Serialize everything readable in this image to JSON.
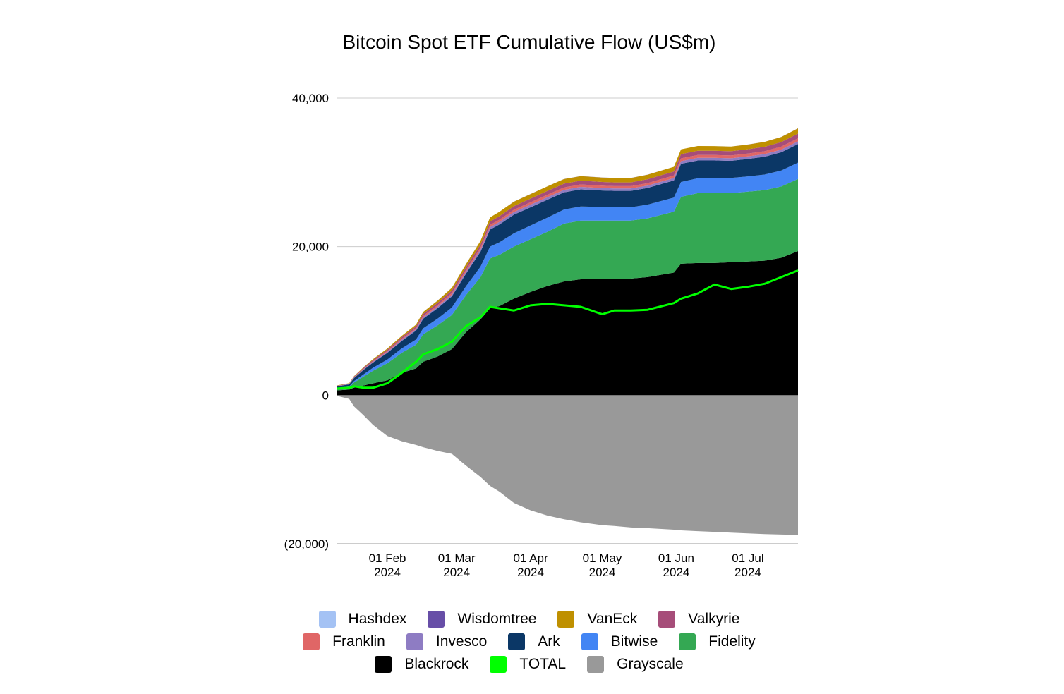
{
  "chart_data": {
    "type": "area",
    "title": "Bitcoin Spot ETF Cumulative Flow (US$m)",
    "xlabel": "",
    "ylabel": "",
    "ylim": [
      -20000,
      40000
    ],
    "yticks": [
      40000,
      20000,
      0,
      -20000
    ],
    "ytick_labels": [
      "40,000",
      "20,000",
      "0",
      "(20,000)"
    ],
    "xlim": [
      "2024-01-11",
      "2024-07-22"
    ],
    "xticks": [
      {
        "date": "2024-02-01",
        "line1": "01 Feb",
        "line2": "2024"
      },
      {
        "date": "2024-03-01",
        "line1": "01 Mar",
        "line2": "2024"
      },
      {
        "date": "2024-04-01",
        "line1": "01 Apr",
        "line2": "2024"
      },
      {
        "date": "2024-05-01",
        "line1": "01 May",
        "line2": "2024"
      },
      {
        "date": "2024-06-01",
        "line1": "01 Jun",
        "line2": "2024"
      },
      {
        "date": "2024-07-01",
        "line1": "01 Jul",
        "line2": "2024"
      }
    ],
    "grid": true,
    "legend_position": "bottom",
    "dates": [
      "2024-01-11",
      "2024-01-16",
      "2024-01-18",
      "2024-01-22",
      "2024-01-26",
      "2024-02-01",
      "2024-02-07",
      "2024-02-13",
      "2024-02-16",
      "2024-02-22",
      "2024-02-28",
      "2024-03-05",
      "2024-03-11",
      "2024-03-15",
      "2024-03-19",
      "2024-03-25",
      "2024-04-01",
      "2024-04-08",
      "2024-04-15",
      "2024-04-22",
      "2024-05-01",
      "2024-05-06",
      "2024-05-13",
      "2024-05-20",
      "2024-05-31",
      "2024-06-03",
      "2024-06-10",
      "2024-06-17",
      "2024-06-24",
      "2024-07-01",
      "2024-07-08",
      "2024-07-15",
      "2024-07-22"
    ],
    "stack_series": [
      {
        "name": "Blackrock",
        "color": "#000000",
        "values": [
          650,
          750,
          1000,
          1300,
          1600,
          2000,
          3000,
          3600,
          4500,
          5200,
          6200,
          8500,
          10200,
          11700,
          12000,
          13000,
          13900,
          14700,
          15300,
          15600,
          15600,
          15700,
          15700,
          15900,
          16500,
          17700,
          17800,
          17800,
          17900,
          18000,
          18100,
          18500,
          19400
        ]
      },
      {
        "name": "Fidelity",
        "color": "#34A853",
        "values": [
          200,
          300,
          700,
          1200,
          1700,
          2300,
          2700,
          3200,
          3700,
          4200,
          4600,
          5000,
          5700,
          6700,
          6900,
          7000,
          7100,
          7300,
          7800,
          7900,
          7900,
          7800,
          7800,
          7900,
          8200,
          9000,
          9400,
          9400,
          9300,
          9400,
          9500,
          9600,
          9700
        ]
      },
      {
        "name": "Bitwise",
        "color": "#4285F4",
        "values": [
          100,
          130,
          200,
          300,
          400,
          500,
          600,
          700,
          800,
          900,
          1000,
          1200,
          1400,
          1600,
          1700,
          1800,
          1850,
          1900,
          1900,
          1900,
          1850,
          1800,
          1800,
          1850,
          1900,
          2000,
          2000,
          2050,
          2050,
          2050,
          2100,
          2150,
          2200
        ]
      },
      {
        "name": "Ark",
        "color": "#0B3766",
        "values": [
          250,
          280,
          400,
          600,
          700,
          900,
          1000,
          1200,
          1300,
          1400,
          1500,
          1700,
          2000,
          2300,
          2400,
          2500,
          2450,
          2400,
          2300,
          2300,
          2200,
          2200,
          2200,
          2250,
          2300,
          2450,
          2400,
          2350,
          2300,
          2350,
          2400,
          2450,
          2500
        ]
      },
      {
        "name": "Invesco",
        "color": "#8E7CC3",
        "values": [
          30,
          40,
          60,
          80,
          100,
          130,
          150,
          180,
          200,
          220,
          240,
          260,
          300,
          330,
          340,
          350,
          350,
          350,
          340,
          340,
          330,
          320,
          320,
          320,
          330,
          350,
          350,
          350,
          340,
          340,
          350,
          360,
          370
        ]
      },
      {
        "name": "Franklin",
        "color": "#E06666",
        "values": [
          20,
          30,
          50,
          70,
          90,
          120,
          140,
          160,
          180,
          200,
          220,
          240,
          260,
          290,
          300,
          310,
          320,
          330,
          330,
          330,
          320,
          320,
          320,
          330,
          350,
          380,
          380,
          380,
          380,
          380,
          390,
          400,
          410
        ]
      },
      {
        "name": "Valkyrie",
        "color": "#A64D79",
        "values": [
          40,
          50,
          80,
          120,
          150,
          180,
          210,
          240,
          270,
          300,
          330,
          360,
          400,
          450,
          470,
          490,
          500,
          510,
          510,
          510,
          500,
          500,
          500,
          520,
          540,
          570,
          570,
          570,
          570,
          580,
          600,
          620,
          640
        ]
      },
      {
        "name": "VanEck",
        "color": "#BF9000",
        "values": [
          30,
          40,
          60,
          90,
          120,
          150,
          180,
          220,
          260,
          300,
          360,
          420,
          500,
          560,
          590,
          600,
          610,
          620,
          620,
          610,
          600,
          600,
          600,
          610,
          620,
          640,
          640,
          630,
          630,
          640,
          660,
          680,
          700
        ]
      },
      {
        "name": "Wisdomtree",
        "color": "#674EA7",
        "values": [
          5,
          5,
          5,
          5,
          5,
          5,
          5,
          5,
          5,
          5,
          5,
          5,
          5,
          5,
          5,
          5,
          5,
          5,
          5,
          5,
          5,
          5,
          5,
          5,
          5,
          5,
          5,
          5,
          5,
          5,
          5,
          5,
          5
        ]
      },
      {
        "name": "Hashdex",
        "color": "#A4C2F4",
        "values": [
          1,
          1,
          1,
          1,
          1,
          1,
          1,
          1,
          1,
          1,
          1,
          1,
          1,
          1,
          1,
          1,
          1,
          1,
          1,
          1,
          1,
          1,
          1,
          1,
          1,
          1,
          1,
          1,
          1,
          1,
          1,
          1,
          1
        ]
      }
    ],
    "negative_series": {
      "name": "Grayscale",
      "color": "#999999",
      "values": [
        -95,
        -500,
        -1500,
        -2700,
        -4000,
        -5500,
        -6200,
        -6700,
        -7000,
        -7500,
        -7900,
        -9500,
        -11000,
        -12200,
        -13000,
        -14500,
        -15500,
        -16200,
        -16700,
        -17100,
        -17500,
        -17600,
        -17800,
        -17900,
        -18100,
        -18200,
        -18300,
        -18400,
        -18500,
        -18600,
        -18700,
        -18750,
        -18800
      ]
    },
    "line_series": {
      "name": "TOTAL",
      "color": "#00FF00",
      "values": [
        900,
        1000,
        1200,
        1000,
        1000,
        1600,
        3000,
        4500,
        5500,
        6200,
        7200,
        9300,
        10500,
        11900,
        11700,
        11400,
        12100,
        12300,
        12100,
        11900,
        10900,
        11400,
        11400,
        11500,
        12400,
        13000,
        13700,
        14900,
        14300,
        14600,
        15000,
        15900,
        16800
      ]
    },
    "legend": [
      [
        "Hashdex",
        "Wisdomtree",
        "VanEck",
        "Valkyrie"
      ],
      [
        "Franklin",
        "Invesco",
        "Ark",
        "Bitwise",
        "Fidelity"
      ],
      [
        "Blackrock",
        "TOTAL",
        "Grayscale"
      ]
    ],
    "legend_colors": {
      "Hashdex": "#A4C2F4",
      "Wisdomtree": "#674EA7",
      "VanEck": "#BF9000",
      "Valkyrie": "#A64D79",
      "Franklin": "#E06666",
      "Invesco": "#8E7CC3",
      "Ark": "#0B3766",
      "Bitwise": "#4285F4",
      "Fidelity": "#34A853",
      "Blackrock": "#000000",
      "TOTAL": "#00FF00",
      "Grayscale": "#999999"
    }
  }
}
